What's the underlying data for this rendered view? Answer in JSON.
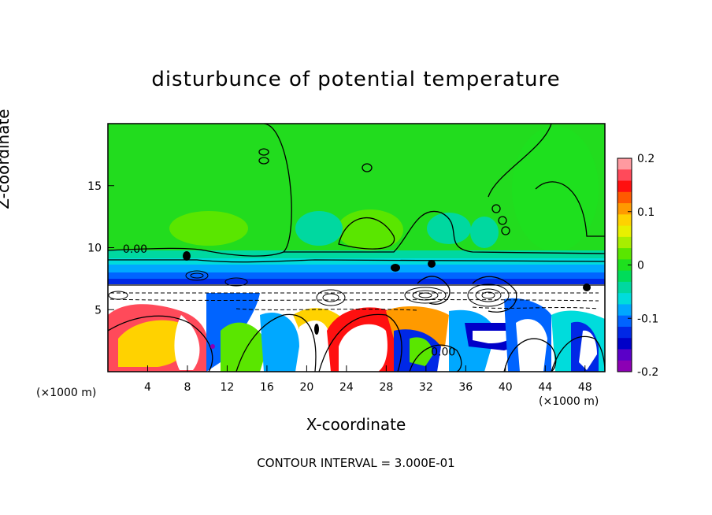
{
  "title": "disturbunce of potential temperature",
  "footer": "CONTOUR INTERVAL = 3.000E-01",
  "chart_data": {
    "type": "heatmap",
    "title": "disturbunce of potential temperature",
    "xlabel": "X-coordinate",
    "ylabel": "Z-coordinate",
    "x_unit": "(×1000 m)",
    "xlim": [
      0,
      50
    ],
    "ylim": [
      0,
      20
    ],
    "x_ticks": [
      4,
      8,
      12,
      16,
      20,
      24,
      28,
      32,
      36,
      40,
      44,
      48
    ],
    "y_ticks": [
      5,
      10,
      15
    ],
    "colorbar": {
      "range": [
        -0.2,
        0.2
      ],
      "tick_values": [
        0.2,
        0.1,
        0,
        -0.1,
        -0.2
      ],
      "tick_labels": [
        "0.2",
        "0.1",
        "0",
        "-0.1",
        "-0.2"
      ],
      "colors": [
        "#ff9aa0",
        "#ff4a5a",
        "#ff1010",
        "#ff5a00",
        "#ff9a00",
        "#ffd200",
        "#e8f000",
        "#a8ee00",
        "#5ae600",
        "#1ee01e",
        "#00dc5a",
        "#00d8a0",
        "#00dcdc",
        "#00a8ff",
        "#0064ff",
        "#0028e6",
        "#0000c8",
        "#5a00c8",
        "#8c00b4"
      ]
    },
    "contour_labels": [
      {
        "x": 1.5,
        "z": 9.6,
        "text": "0.00"
      },
      {
        "x": 32.5,
        "z": 1.3,
        "text": "0.00"
      }
    ],
    "contour_interval": "3.000E-01"
  }
}
